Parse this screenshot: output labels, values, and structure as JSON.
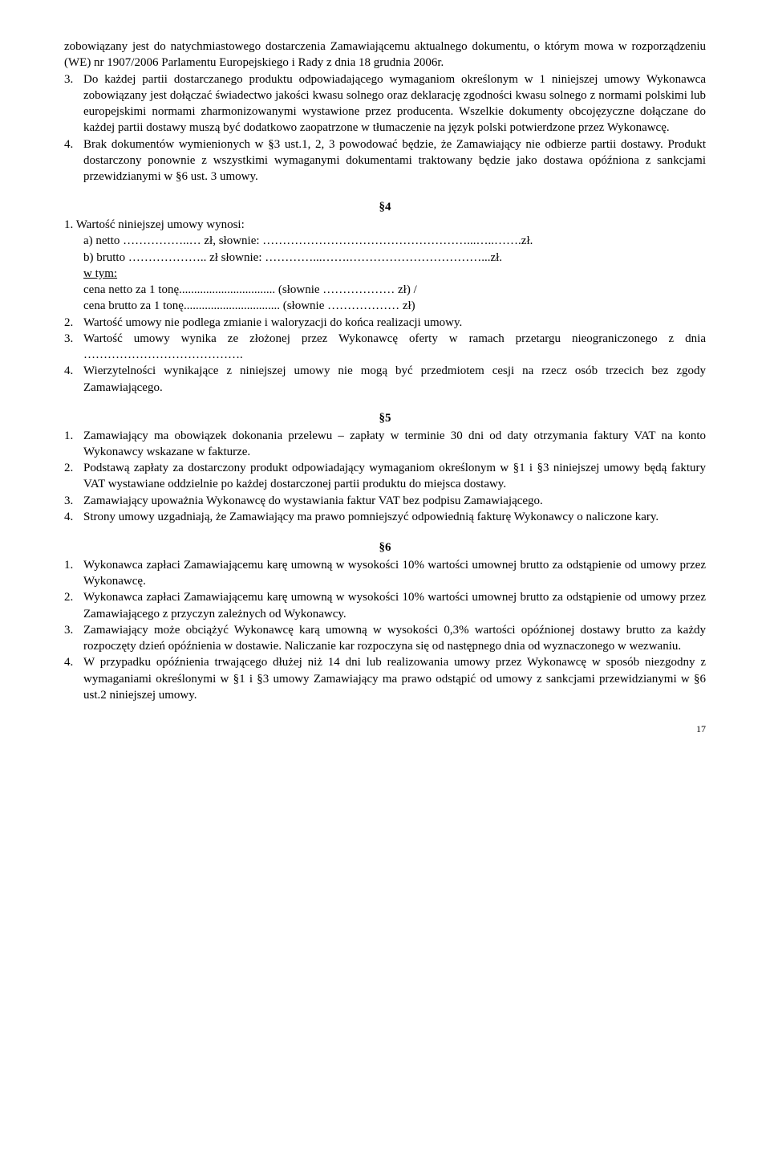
{
  "intro_cont": "zobowiązany jest do natychmiastowego dostarczenia Zamawiającemu aktualnego dokumentu, o którym mowa w rozporządzeniu (WE) nr 1907/2006 Parlamentu Europejskiego i Rady z dnia 18 grudnia 2006r.",
  "p3_item3": "Do każdej partii dostarczanego produktu odpowiadającego wymaganiom określonym w 1 niniejszej umowy Wykonawca zobowiązany jest dołączać świadectwo jakości kwasu solnego oraz deklarację zgodności kwasu solnego z normami polskimi lub europejskimi normami zharmonizowanymi wystawione przez producenta. Wszelkie dokumenty obcojęzyczne dołączane do każdej partii dostawy muszą być dodatkowo zaopatrzone w tłumaczenie na język polski potwierdzone przez Wykonawcę.",
  "p3_item4": "Brak dokumentów wymienionych w §3 ust.1, 2, 3 powodować będzie, że Zamawiający nie odbierze partii dostawy. Produkt dostarczony ponownie z wszystkimi wymaganymi dokumentami traktowany będzie jako dostawa opóźniona z sankcjami przewidzianymi w §6 ust. 3 umowy.",
  "p4_label": "§4",
  "p4_item1_intro": "1. Wartość niniejszej umowy wynosi:",
  "p4_item1_a": "a) netto ……………..… zł, słownie: ……………………………………………...…..…….zł.",
  "p4_item1_b": "b) brutto ……………….. zł słownie: …………...…….……………………………...zł.",
  "p4_item1_c": "w tym:",
  "p4_item1_d": "cena netto za 1 tonę................................ (słownie ……………… zł) /",
  "p4_item1_e": "cena brutto za 1 tonę................................ (słownie ……………… zł)",
  "p4_item2": "Wartość umowy nie podlega zmianie i waloryzacji do końca realizacji umowy.",
  "p4_item3": "Wartość umowy wynika ze złożonej przez Wykonawcę oferty w ramach przetargu nieograniczonego  z dnia ………………………………….",
  "p4_item4": "Wierzytelności wynikające z niniejszej umowy nie mogą być przedmiotem cesji na rzecz osób trzecich bez zgody Zamawiającego.",
  "p5_label": "§5",
  "p5_item1": "Zamawiający ma obowiązek dokonania przelewu – zapłaty w terminie 30 dni od daty otrzymania faktury VAT na konto Wykonawcy wskazane w fakturze.",
  "p5_item2": "Podstawą zapłaty za dostarczony produkt odpowiadający wymaganiom określonym w §1 i §3 niniejszej umowy będą faktury VAT wystawiane oddzielnie po każdej dostarczonej partii produktu do miejsca dostawy.",
  "p5_item3": "Zamawiający upoważnia Wykonawcę do wystawiania faktur VAT bez podpisu Zamawiającego.",
  "p5_item4": "Strony umowy uzgadniają, że Zamawiający ma prawo pomniejszyć odpowiednią fakturę Wykonawcy o naliczone kary.",
  "p6_label": "§6",
  "p6_item1": "Wykonawca zapłaci Zamawiającemu karę umowną w wysokości 10% wartości umownej brutto za odstąpienie od umowy przez Wykonawcę.",
  "p6_item2": "Wykonawca zapłaci Zamawiającemu karę umowną w wysokości 10% wartości umownej brutto za odstąpienie od umowy przez Zamawiającego z przyczyn zależnych od Wykonawcy.",
  "p6_item3": "Zamawiający może obciążyć Wykonawcę karą umowną w wysokości 0,3% wartości opóźnionej dostawy brutto za każdy rozpoczęty dzień opóźnienia w dostawie. Naliczanie kar rozpoczyna się od następnego dnia od wyznaczonego w wezwaniu.",
  "p6_item4": "W przypadku opóźnienia trwającego dłużej niż 14 dni lub realizowania umowy przez Wykonawcę w sposób niezgodny z wymaganiami określonymi w §1 i §3 umowy Zamawiający ma prawo odstąpić od umowy z sankcjami przewidzianymi w §6 ust.2 niniejszej umowy.",
  "numbers": {
    "n2": "2.",
    "n3": "3.",
    "n4": "4.",
    "n1": "1."
  },
  "page_number": "17"
}
